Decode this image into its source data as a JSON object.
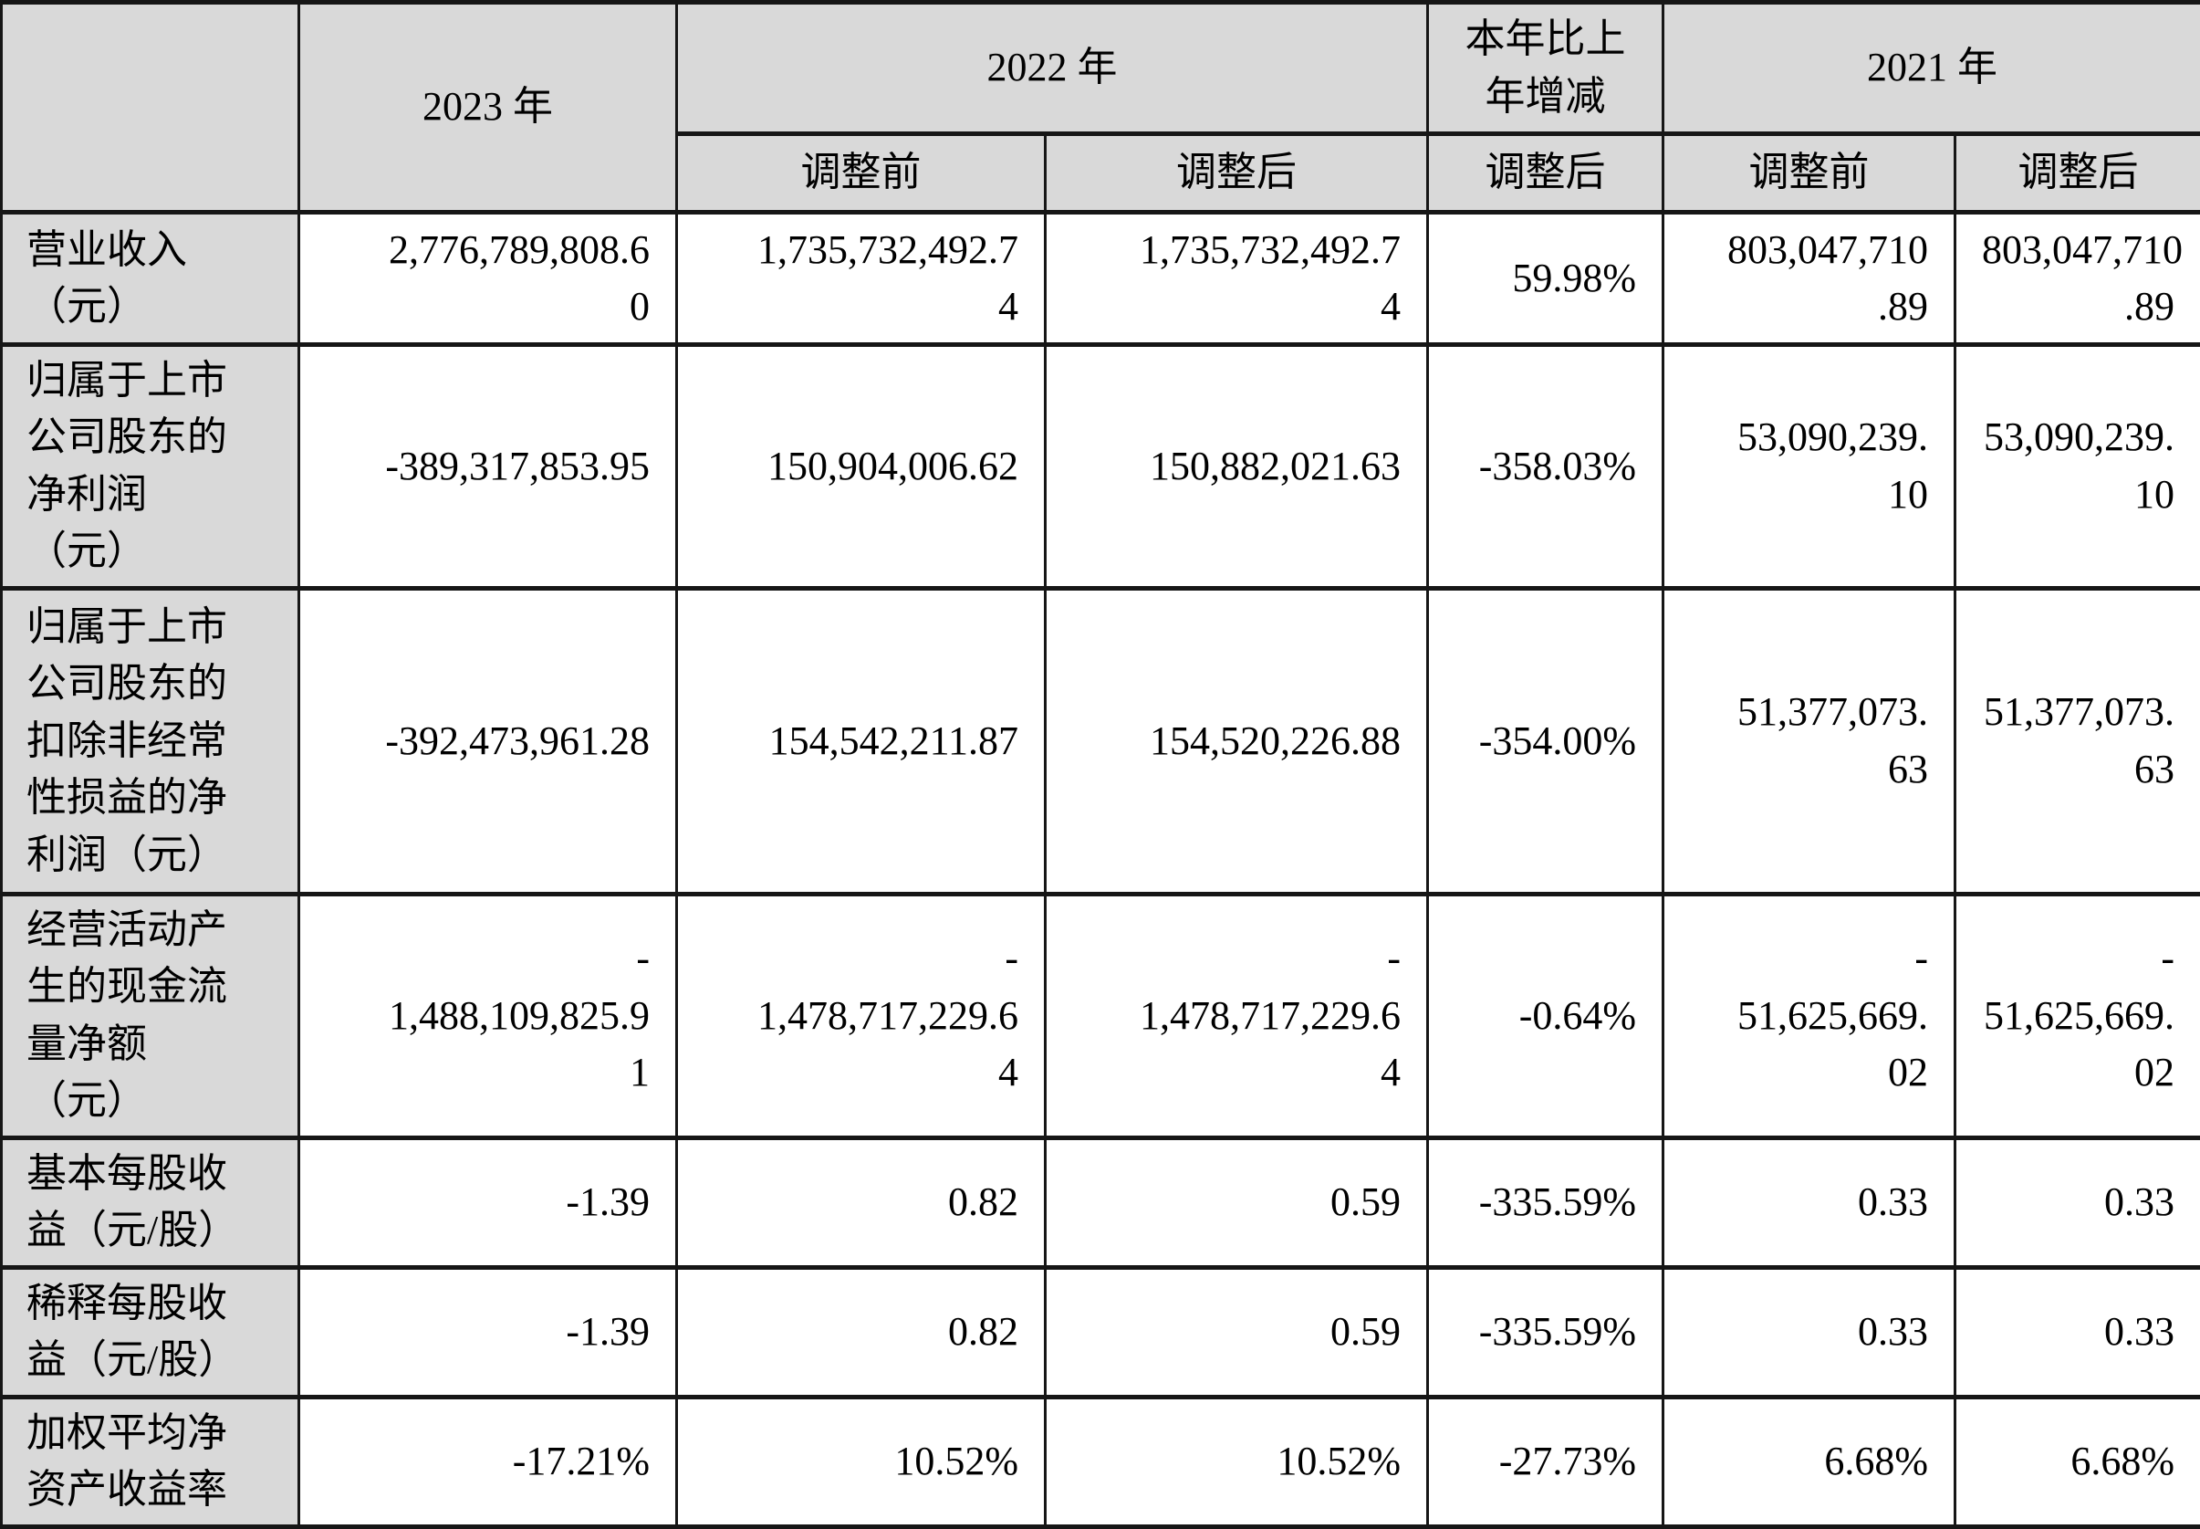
{
  "colors": {
    "header_bg": "#d9d9d9",
    "border": "#161616",
    "text": "#000000",
    "cell_bg": "#ffffff"
  },
  "table": {
    "header": {
      "blank": "",
      "y2023": "2023 年",
      "y2022": "2022 年",
      "change": "本年比上\n年增减",
      "y2021": "2021 年",
      "sub": [
        "调整前",
        "调整后",
        "调整后",
        "调整前",
        "调整后"
      ]
    },
    "rows": [
      {
        "label": "营业收入\n（元）",
        "cells": [
          "2,776,789,808.6\n0",
          "1,735,732,492.7\n4",
          "1,735,732,492.7\n4",
          "59.98%",
          "803,047,710\n.89",
          "803,047,710\n.89"
        ]
      },
      {
        "label": "归属于上市\n公司股东的\n净利润\n（元）",
        "cells": [
          "-389,317,853.95",
          "150,904,006.62",
          "150,882,021.63",
          "-358.03%",
          "53,090,239.\n10",
          "53,090,239.\n10"
        ]
      },
      {
        "label": "归属于上市\n公司股东的\n扣除非经常\n性损益的净\n利润（元）",
        "cells": [
          "-392,473,961.28",
          "154,542,211.87",
          "154,520,226.88",
          "-354.00%",
          "51,377,073.\n63",
          "51,377,073.\n63"
        ]
      },
      {
        "label": "经营活动产\n生的现金流\n量净额\n（元）",
        "cells": [
          "-\n1,488,109,825.9\n1",
          "-\n1,478,717,229.6\n4",
          "-\n1,478,717,229.6\n4",
          "-0.64%",
          "-\n51,625,669.\n02",
          "-\n51,625,669.\n02"
        ]
      },
      {
        "label": "基本每股收\n益（元/股）",
        "cells": [
          "-1.39",
          "0.82",
          "0.59",
          "-335.59%",
          "0.33",
          "0.33"
        ]
      },
      {
        "label": "稀释每股收\n益（元/股）",
        "cells": [
          "-1.39",
          "0.82",
          "0.59",
          "-335.59%",
          "0.33",
          "0.33"
        ]
      },
      {
        "label": "加权平均净\n资产收益率",
        "cells": [
          "-17.21%",
          "10.52%",
          "10.52%",
          "-27.73%",
          "6.68%",
          "6.68%"
        ]
      }
    ]
  }
}
